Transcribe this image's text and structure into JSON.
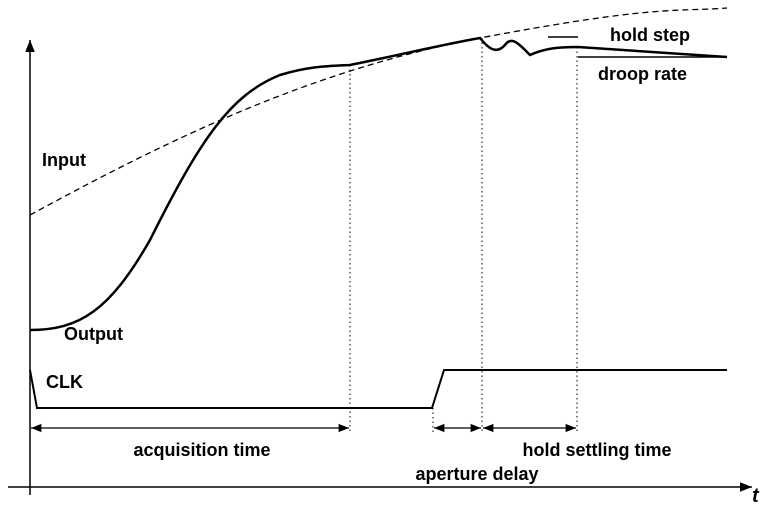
{
  "labels": {
    "input": "Input",
    "output": "Output",
    "clk": "CLK",
    "hold_step": "hold step",
    "droop_rate": "droop rate",
    "acquisition_time": "acquisition time",
    "hold_settling_time": "hold settling time",
    "aperture_delay": "aperture delay",
    "t_axis": "t"
  }
}
